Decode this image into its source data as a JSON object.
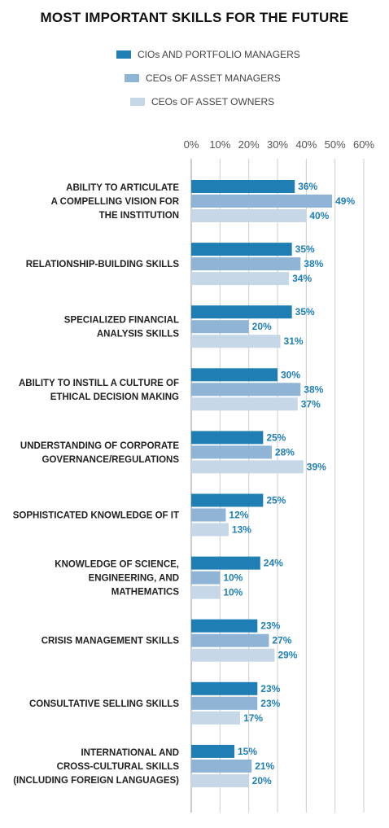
{
  "chart_data": {
    "type": "bar",
    "orientation": "horizontal",
    "title": "MOST IMPORTANT SKILLS FOR THE FUTURE",
    "xlabel": "",
    "ylabel": "",
    "xlim": [
      0,
      60
    ],
    "x_ticks": [
      "0%",
      "10%",
      "20%",
      "30%",
      "40%",
      "50%",
      "60%"
    ],
    "grid": true,
    "legend_position": "top",
    "value_suffix": "%",
    "categories": [
      [
        "ABILITY TO ARTICULATE",
        "A COMPELLING VISION FOR",
        "THE INSTITUTION"
      ],
      [
        "RELATIONSHIP-BUILDING SKILLS"
      ],
      [
        "SPECIALIZED FINANCIAL",
        "ANALYSIS SKILLS"
      ],
      [
        "ABILITY TO INSTILL A CULTURE OF",
        "ETHICAL DECISION MAKING"
      ],
      [
        "UNDERSTANDING OF CORPORATE",
        "GOVERNANCE/REGULATIONS"
      ],
      [
        "SOPHISTICATED KNOWLEDGE OF IT"
      ],
      [
        "KNOWLEDGE OF SCIENCE,",
        "ENGINEERING, AND",
        "MATHEMATICS"
      ],
      [
        "CRISIS MANAGEMENT SKILLS"
      ],
      [
        "CONSULTATIVE SELLING SKILLS"
      ],
      [
        "INTERNATIONAL AND",
        "CROSS-CULTURAL SKILLS",
        "(INCLUDING FOREIGN LANGUAGES)"
      ]
    ],
    "series": [
      {
        "name": "CIOs AND PORTFOLIO MANAGERS",
        "color": "#1f7fb5",
        "values": [
          36,
          35,
          35,
          30,
          25,
          25,
          24,
          23,
          23,
          15
        ]
      },
      {
        "name": "CEOs OF ASSET MANAGERS",
        "color": "#8fb4d6",
        "values": [
          49,
          38,
          20,
          38,
          28,
          12,
          10,
          27,
          23,
          21
        ]
      },
      {
        "name": "CEOs OF ASSET OWNERS",
        "color": "#c6d7e7",
        "values": [
          40,
          34,
          31,
          37,
          39,
          13,
          10,
          29,
          17,
          20
        ]
      }
    ],
    "value_label_color": "#1f7fb5",
    "grid_color": "#cccccc",
    "axis_color": "#999999"
  }
}
